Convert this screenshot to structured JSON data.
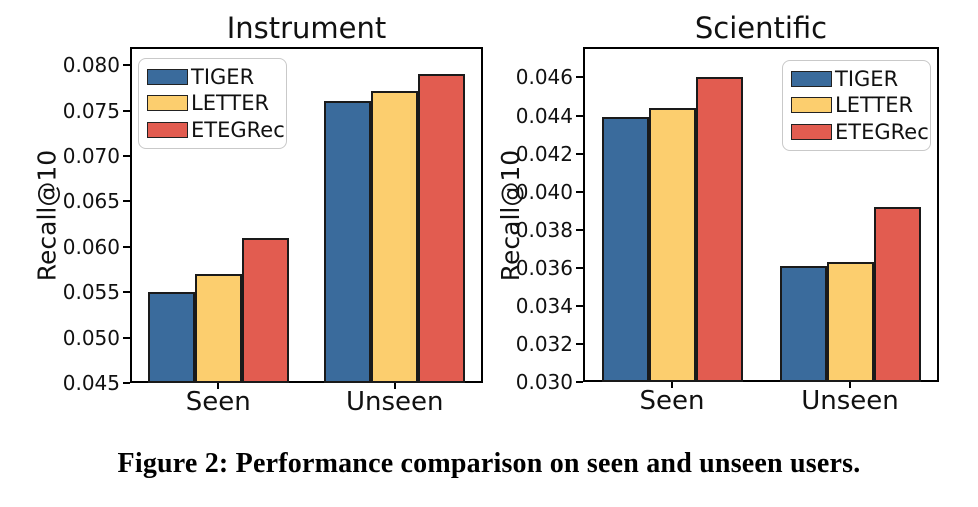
{
  "figure": {
    "caption": "Figure 2: Performance comparison on seen and unseen users."
  },
  "chart_data": [
    {
      "type": "bar",
      "title": "Instrument",
      "ylabel": "Recall@10",
      "categories": [
        "Seen",
        "Unseen"
      ],
      "series": [
        {
          "name": "TIGER",
          "color": "#3A6B9C",
          "values": [
            0.055,
            0.076
          ]
        },
        {
          "name": "LETTER",
          "color": "#FCCE6E",
          "values": [
            0.057,
            0.0772
          ]
        },
        {
          "name": "ETEGRec",
          "color": "#E25C50",
          "values": [
            0.061,
            0.079
          ]
        }
      ],
      "ylim": [
        0.045,
        0.082
      ],
      "yticks": [
        "0.045",
        "0.050",
        "0.055",
        "0.060",
        "0.065",
        "0.070",
        "0.075",
        "0.080"
      ],
      "legend_position": "top-left",
      "grid": false
    },
    {
      "type": "bar",
      "title": "Scientific",
      "ylabel": "Recall@10",
      "categories": [
        "Seen",
        "Unseen"
      ],
      "series": [
        {
          "name": "TIGER",
          "color": "#3A6B9C",
          "values": [
            0.0439,
            0.0361
          ]
        },
        {
          "name": "LETTER",
          "color": "#FCCE6E",
          "values": [
            0.0444,
            0.0363
          ]
        },
        {
          "name": "ETEGRec",
          "color": "#E25C50",
          "values": [
            0.046,
            0.0392
          ]
        }
      ],
      "ylim": [
        0.03,
        0.0476
      ],
      "yticks": [
        "0.030",
        "0.032",
        "0.034",
        "0.036",
        "0.038",
        "0.040",
        "0.042",
        "0.044",
        "0.046"
      ],
      "legend_position": "top-right",
      "grid": false
    }
  ]
}
